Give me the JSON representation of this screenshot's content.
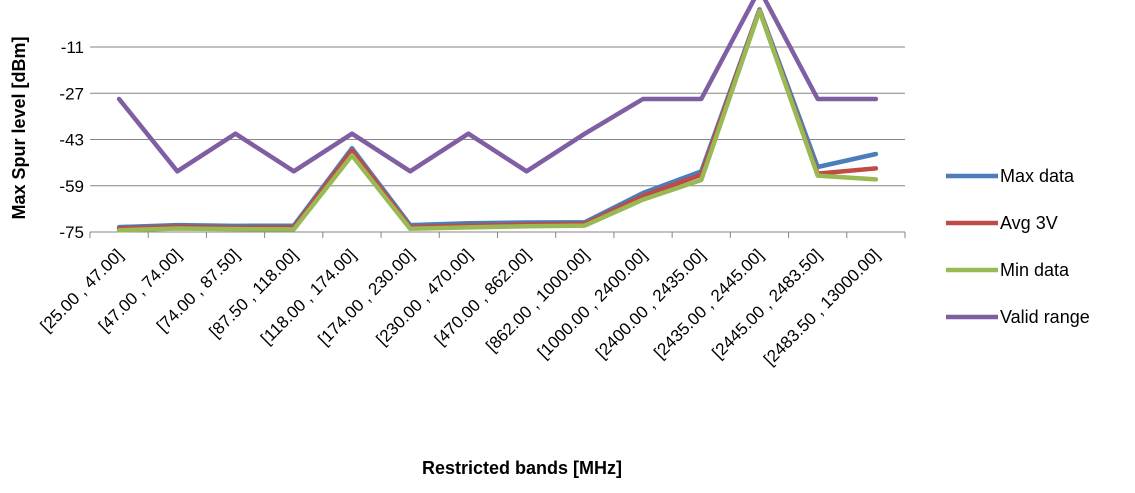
{
  "chart_data": {
    "type": "line",
    "title": "",
    "xlabel": "Restricted bands [MHz]",
    "ylabel": "Max Spur level [dBm]",
    "ylim": [
      -75,
      -11
    ],
    "yticks": [
      "-11",
      "-27",
      "-43",
      "-59",
      "-75"
    ],
    "ytick_values": [
      -11,
      -27,
      -43,
      -59,
      -75
    ],
    "grid": true,
    "legend_position": "right",
    "categories": [
      "[25.00 , 47.00]",
      "[47.00 , 74.00]",
      "[74.00 , 87.50]",
      "[87.50 , 118.00]",
      "[118.00 , 174.00]",
      "[174.00 , 230.00]",
      "[230.00 , 470.00]",
      "[470.00 , 862.00]",
      "[862.00 , 1000.00]",
      "[1000.00 , 2400.00]",
      "[2400.00 , 2435.00]",
      "[2435.00 , 2445.00]",
      "[2445.00 , 2483.50]",
      "[2483.50 , 13000.00]"
    ],
    "series": [
      {
        "name": "Valid range",
        "color": "#7F5FA2",
        "values": [
          -29,
          -54,
          -41,
          -54,
          -41,
          -54,
          -41,
          -54,
          -41,
          -29,
          -29,
          9,
          -29,
          -29
        ]
      },
      {
        "name": "Max data",
        "color": "#4A7EBB",
        "values": [
          -73.3,
          -72.6,
          -72.9,
          -72.8,
          -46,
          -72.6,
          -72,
          -71.7,
          -71.6,
          -61.5,
          -54,
          2,
          -52.5,
          -48
        ]
      },
      {
        "name": "Avg 3V",
        "color": "#BE4B48",
        "values": [
          -73.8,
          -73.2,
          -73.5,
          -73.4,
          -46.8,
          -73.3,
          -72.8,
          -72.4,
          -72.2,
          -62.5,
          -55.2,
          1.8,
          -54.8,
          -53
        ]
      },
      {
        "name": "Min data",
        "color": "#98B954",
        "values": [
          -74.4,
          -73.8,
          -74.0,
          -74.1,
          -48.5,
          -73.9,
          -73.4,
          -73.0,
          -72.8,
          -63.8,
          -57,
          1.5,
          -55.5,
          -56.8
        ]
      }
    ],
    "legend": [
      {
        "name": "Max data",
        "color": "#4A7EBB"
      },
      {
        "name": "Avg 3V",
        "color": "#BE4B48"
      },
      {
        "name": "Min data",
        "color": "#98B954"
      },
      {
        "name": "Valid range",
        "color": "#7F5FA2"
      }
    ]
  }
}
